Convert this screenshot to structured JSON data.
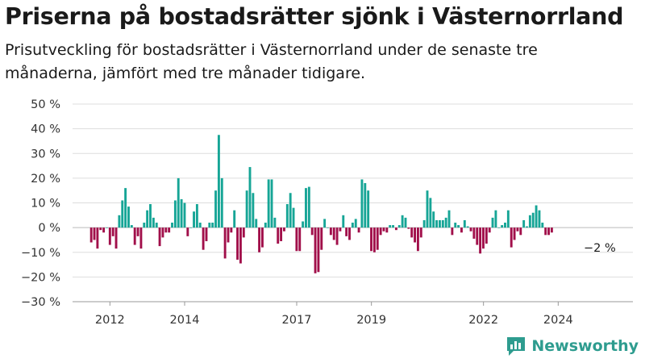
{
  "title": "Priserna på bostadsrätter sjönk i Västernorrland",
  "subtitle": "Prisutveckling för bostadsrätter i Västernorrland under de senaste tre månaderna, jämfört med tre månader tidigare.",
  "annotation": "−2 %",
  "brand": {
    "name": "Newsworthy"
  },
  "colors": {
    "positive": "#16a596",
    "negative": "#a10f4a",
    "grid": "#dddddd",
    "brand": "#2e9c8f"
  },
  "chart_data": {
    "type": "bar",
    "ylim": [
      -30,
      50
    ],
    "ytick_labels": [
      "50 %",
      "40 %",
      "30 %",
      "20 %",
      "10 %",
      "0 %",
      "−10 %",
      "−20 %",
      "−30 %"
    ],
    "xtick_labels": [
      "2012",
      "2014",
      "2017",
      "2019",
      "2022",
      "2024"
    ],
    "xlim": [
      2011.0,
      2026.0
    ],
    "x_start": 2011.5,
    "x_step": 0.0833,
    "values": [
      -6,
      -5,
      -8.5,
      -1,
      -2,
      0,
      -7,
      -3.5,
      -8.5,
      5,
      11,
      16,
      8.5,
      1,
      -7,
      -3.5,
      -8.5,
      2,
      7,
      9.5,
      4,
      2,
      -7.5,
      -4,
      -2,
      -2,
      2,
      11,
      20,
      11.5,
      10,
      -3.5,
      0,
      6.5,
      9.5,
      2,
      -9,
      -5.5,
      2,
      2,
      15,
      37.5,
      20,
      -12.5,
      -6,
      -2,
      7,
      -13,
      -14.5,
      -4,
      15,
      24.5,
      14,
      3.5,
      -10,
      -8,
      2,
      19.5,
      19.5,
      4,
      -6.5,
      -5.5,
      -1.5,
      9.5,
      14,
      8,
      -9.5,
      -9.5,
      2.5,
      16,
      16.5,
      -3,
      -18.5,
      -18,
      -9,
      3.5,
      0,
      -3,
      -5,
      -7,
      -1.5,
      5,
      -3.5,
      -5,
      2,
      3.5,
      -2,
      19.5,
      18,
      15,
      -9.5,
      -10,
      -9,
      -3,
      -1.5,
      -2,
      1,
      1,
      -1,
      1,
      5,
      4,
      -0.5,
      -4,
      -6,
      -9.5,
      -4,
      3,
      15,
      12,
      6.5,
      3,
      3,
      3,
      4,
      7,
      -3,
      2,
      1,
      -2,
      3,
      0.5,
      -1.5,
      -4.5,
      -7,
      -10.5,
      -8.5,
      -6.5,
      -2,
      4,
      7,
      0,
      1,
      2,
      7,
      -8,
      -5,
      -1.5,
      -3,
      3,
      0.5,
      5,
      6,
      9,
      7,
      2,
      -3,
      -3,
      -2
    ]
  }
}
